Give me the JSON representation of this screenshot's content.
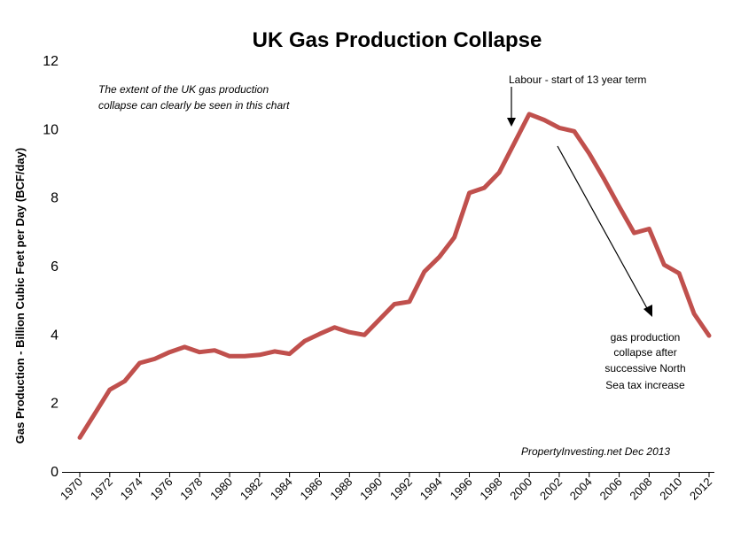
{
  "chart_data": {
    "type": "line",
    "title": "UK Gas Production Collapse",
    "ylabel": "Gas Production  -  Billion Cubic Feet per Day (BCF/day)",
    "xlabel": "",
    "ylim": [
      0,
      12
    ],
    "yticks": [
      0,
      2,
      4,
      6,
      8,
      10,
      12
    ],
    "xlim": [
      1970,
      2012
    ],
    "xticks": [
      1970,
      1972,
      1974,
      1976,
      1978,
      1980,
      1982,
      1984,
      1986,
      1988,
      1990,
      1992,
      1994,
      1996,
      1998,
      2000,
      2002,
      2004,
      2006,
      2008,
      2010,
      2012
    ],
    "grid": false,
    "series": [
      {
        "color": "#c0504d",
        "x": [
          1970,
          1971,
          1972,
          1973,
          1974,
          1975,
          1976,
          1977,
          1978,
          1979,
          1980,
          1981,
          1982,
          1983,
          1984,
          1985,
          1986,
          1987,
          1988,
          1989,
          1990,
          1991,
          1992,
          1993,
          1994,
          1995,
          1996,
          1997,
          1998,
          1999,
          2000,
          2001,
          2002,
          2003,
          2004,
          2005,
          2006,
          2007,
          2008,
          2009,
          2010,
          2011,
          2012
        ],
        "y": [
          1.0,
          1.7,
          2.4,
          2.65,
          3.18,
          3.3,
          3.5,
          3.65,
          3.5,
          3.55,
          3.38,
          3.38,
          3.42,
          3.52,
          3.45,
          3.82,
          4.03,
          4.22,
          4.08,
          4.0,
          4.45,
          4.9,
          4.97,
          5.85,
          6.28,
          6.85,
          8.15,
          8.3,
          8.75,
          9.6,
          10.45,
          10.28,
          10.05,
          9.95,
          9.3,
          8.55,
          7.75,
          6.98,
          7.1,
          6.05,
          5.8,
          4.62,
          3.98
        ]
      }
    ],
    "annotations": {
      "note": [
        "The extent of the UK gas production",
        "collapse can clearly be seen in this chart"
      ],
      "labour": "Labour - start of 13 year term",
      "collapse": [
        "gas production",
        "collapse after",
        "successive North",
        "Sea tax increase"
      ],
      "credit": "PropertyInvesting.net  Dec 2013"
    }
  }
}
